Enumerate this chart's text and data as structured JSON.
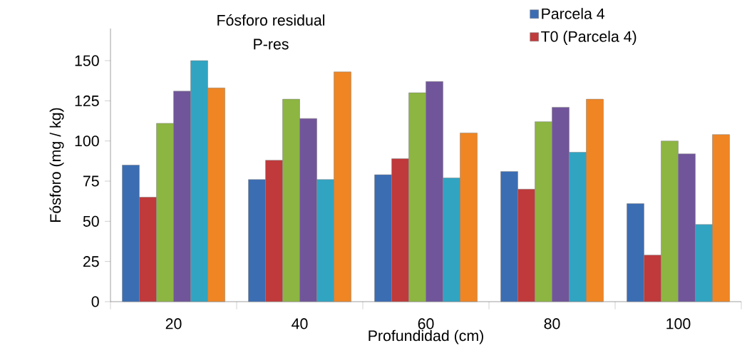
{
  "chart_data": {
    "type": "bar",
    "title": "Fósforo residual",
    "subtitle": "P-res",
    "xlabel": "Profundidad (cm)",
    "ylabel": "Fósforo (mg / kg)",
    "categories": [
      "20",
      "40",
      "60",
      "80",
      "100"
    ],
    "series": [
      {
        "name": "Parcela 4",
        "color": "#3b6db3",
        "values": [
          85,
          76,
          79,
          81,
          61
        ]
      },
      {
        "name": "T0 (Parcela 4)",
        "color": "#c0393b",
        "values": [
          65,
          88,
          89,
          70,
          29
        ]
      },
      {
        "color": "#8db542",
        "values": [
          111,
          126,
          130,
          112,
          100
        ]
      },
      {
        "color": "#71559a",
        "values": [
          131,
          114,
          137,
          121,
          92
        ]
      },
      {
        "color": "#31a4c2",
        "values": [
          150,
          76,
          77,
          93,
          48
        ]
      },
      {
        "color": "#f08523",
        "values": [
          133,
          143,
          105,
          126,
          104
        ]
      }
    ],
    "ylim": [
      0,
      170
    ],
    "yticks": [
      0,
      25,
      50,
      75,
      100,
      125,
      150
    ],
    "legend": "top right"
  }
}
